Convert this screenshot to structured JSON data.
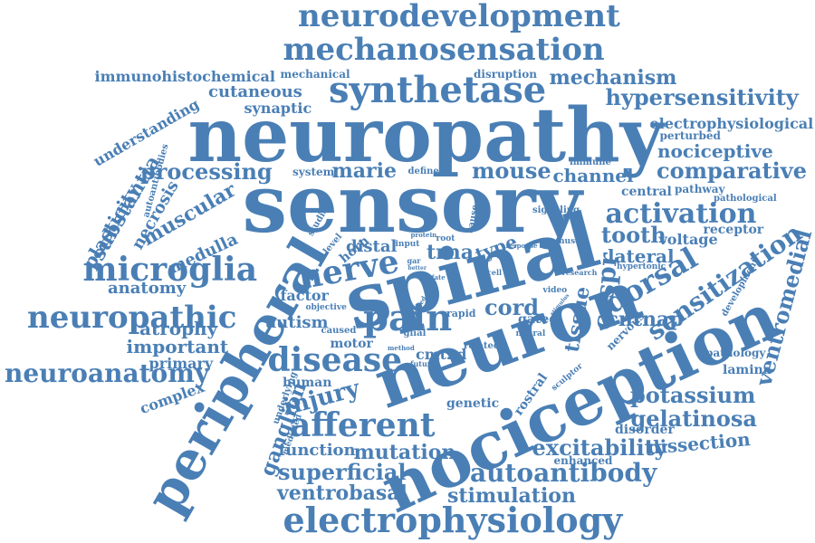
{
  "word_cloud": {
    "color": "#4a7fb5",
    "background": "#ffffff",
    "words": [
      {
        "text": "neuropathy",
        "rotation": 0
      },
      {
        "text": "sensory",
        "rotation": 0
      },
      {
        "text": "spinal",
        "rotation": -15
      },
      {
        "text": "neuron",
        "rotation": -20
      },
      {
        "text": "nociception",
        "rotation": -25
      },
      {
        "text": "peripheral",
        "rotation": -60
      },
      {
        "text": "neurodevelopment",
        "rotation": 0
      },
      {
        "text": "mechanosensation",
        "rotation": 0
      },
      {
        "text": "synthetase",
        "rotation": 0
      },
      {
        "text": "electrophysiology",
        "rotation": 0
      },
      {
        "text": "microglia",
        "rotation": 0
      },
      {
        "text": "disease",
        "rotation": 0
      },
      {
        "text": "pain",
        "rotation": 0
      },
      {
        "text": "afferent",
        "rotation": 0
      },
      {
        "text": "neuropathic",
        "rotation": 0
      },
      {
        "text": "neuroanatomy",
        "rotation": 0
      },
      {
        "text": "nerve",
        "rotation": -10
      },
      {
        "text": "processing",
        "rotation": 0
      },
      {
        "text": "activation",
        "rotation": 0
      },
      {
        "text": "sensitization",
        "rotation": -35
      },
      {
        "text": "hypersensitivity",
        "rotation": 0
      },
      {
        "text": "comparative",
        "rotation": 0
      },
      {
        "text": "autoantibody",
        "rotation": 0
      },
      {
        "text": "mouse",
        "rotation": 0
      },
      {
        "text": "marie",
        "rotation": 0
      },
      {
        "text": "dorsal",
        "rotation": -30
      },
      {
        "text": "caspr",
        "rotation": -85
      },
      {
        "text": "ventromedial",
        "rotation": -75
      },
      {
        "text": "injury",
        "rotation": -15
      },
      {
        "text": "cord",
        "rotation": 0
      },
      {
        "text": "tooth",
        "rotation": 0
      },
      {
        "text": "potassium",
        "rotation": 0
      },
      {
        "text": "gelatinosa",
        "rotation": 0
      },
      {
        "text": "excitability",
        "rotation": 0
      },
      {
        "text": "superficial",
        "rotation": 0
      },
      {
        "text": "ventrobasal",
        "rotation": 0
      },
      {
        "text": "stimulation",
        "rotation": 0
      },
      {
        "text": "mutation",
        "rotation": 0
      },
      {
        "text": "function",
        "rotation": 0
      },
      {
        "text": "dissection",
        "rotation": -5
      },
      {
        "text": "mechanism",
        "rotation": 0
      },
      {
        "text": "nociceptive",
        "rotation": 0
      },
      {
        "text": "channel",
        "rotation": 0
      },
      {
        "text": "cutaneous",
        "rotation": 0
      },
      {
        "text": "synaptic",
        "rotation": 0
      },
      {
        "text": "immunohistochemical",
        "rotation": 0
      },
      {
        "text": "mechanical",
        "rotation": 0
      },
      {
        "text": "disruption",
        "rotation": 0
      },
      {
        "text": "understanding",
        "rotation": -30
      },
      {
        "text": "substantia",
        "rotation": -60
      },
      {
        "text": "plasticity",
        "rotation": -60
      },
      {
        "text": "necrosis",
        "rotation": -60
      },
      {
        "text": "muscular",
        "rotation": -30
      },
      {
        "text": "medulla",
        "rotation": -25
      },
      {
        "text": "anatomy",
        "rotation": 0
      },
      {
        "text": "atrophy",
        "rotation": 0
      },
      {
        "text": "important",
        "rotation": 0
      },
      {
        "text": "primary",
        "rotation": 0
      },
      {
        "text": "complex",
        "rotation": -20
      },
      {
        "text": "autism",
        "rotation": 0
      },
      {
        "text": "factor",
        "rotation": 0
      },
      {
        "text": "motor",
        "rotation": 0
      },
      {
        "text": "human",
        "rotation": 0
      },
      {
        "text": "ganglion",
        "rotation": -70
      },
      {
        "text": "distal",
        "rotation": 0
      },
      {
        "text": "horn",
        "rotation": -40
      },
      {
        "text": "trna",
        "rotation": 0
      },
      {
        "text": "type",
        "rotation": -20
      },
      {
        "text": "tissue",
        "rotation": -80
      },
      {
        "text": "cntnap",
        "rotation": 0
      },
      {
        "text": "lateral",
        "rotation": 0
      },
      {
        "text": "voltage",
        "rotation": 0
      },
      {
        "text": "receptor",
        "rotation": 0
      },
      {
        "text": "pathological",
        "rotation": 0
      },
      {
        "text": "pathway",
        "rotation": 0
      },
      {
        "text": "central",
        "rotation": 0
      },
      {
        "text": "electrophysiological",
        "rotation": 0
      },
      {
        "text": "perturbed",
        "rotation": 0
      },
      {
        "text": "immune",
        "rotation": 0
      },
      {
        "text": "system",
        "rotation": 0
      },
      {
        "text": "defined",
        "rotation": 0
      },
      {
        "text": "signaling",
        "rotation": 0
      },
      {
        "text": "cause",
        "rotation": -80
      },
      {
        "text": "studies",
        "rotation": -60
      },
      {
        "text": "autoantibodies",
        "rotation": -75
      },
      {
        "text": "level",
        "rotation": -50
      },
      {
        "text": "objective",
        "rotation": 0
      },
      {
        "text": "caused",
        "rotation": 0
      },
      {
        "text": "input",
        "rotation": 0
      },
      {
        "text": "root",
        "rotation": 0
      },
      {
        "text": "protein",
        "rotation": 0
      },
      {
        "text": "response",
        "rotation": 0
      },
      {
        "text": "muscle",
        "rotation": 0
      },
      {
        "text": "hypertonic",
        "rotation": 0
      },
      {
        "text": "research",
        "rotation": 0
      },
      {
        "text": "cell",
        "rotation": 0
      },
      {
        "text": "video",
        "rotation": 0
      },
      {
        "text": "rapid",
        "rotation": 0
      },
      {
        "text": "gated",
        "rotation": 0
      },
      {
        "text": "neural",
        "rotation": 0
      },
      {
        "text": "related",
        "rotation": 0
      },
      {
        "text": "glial",
        "rotation": 0
      },
      {
        "text": "cmt2d",
        "rotation": 0
      },
      {
        "text": "method",
        "rotation": 0
      },
      {
        "text": "future",
        "rotation": 0
      },
      {
        "text": "genetic",
        "rotation": 0
      },
      {
        "text": "rostral",
        "rotation": -55
      },
      {
        "text": "sculptor",
        "rotation": -40
      },
      {
        "text": "disorder",
        "rotation": 0
      },
      {
        "text": "enhanced",
        "rotation": 0
      },
      {
        "text": "lamina",
        "rotation": 0
      },
      {
        "text": "pathology",
        "rotation": 0
      },
      {
        "text": "development",
        "rotation": -60
      },
      {
        "text": "nervous",
        "rotation": -45
      },
      {
        "text": "underlying",
        "rotation": -70
      },
      {
        "text": "mediated",
        "rotation": -70
      },
      {
        "text": "better",
        "rotation": 0
      },
      {
        "text": "stimulus",
        "rotation": -50
      },
      {
        "text": "provided",
        "rotation": -60
      },
      {
        "text": "fate",
        "rotation": 0
      },
      {
        "text": "gar",
        "rotation": 0
      }
    ]
  }
}
